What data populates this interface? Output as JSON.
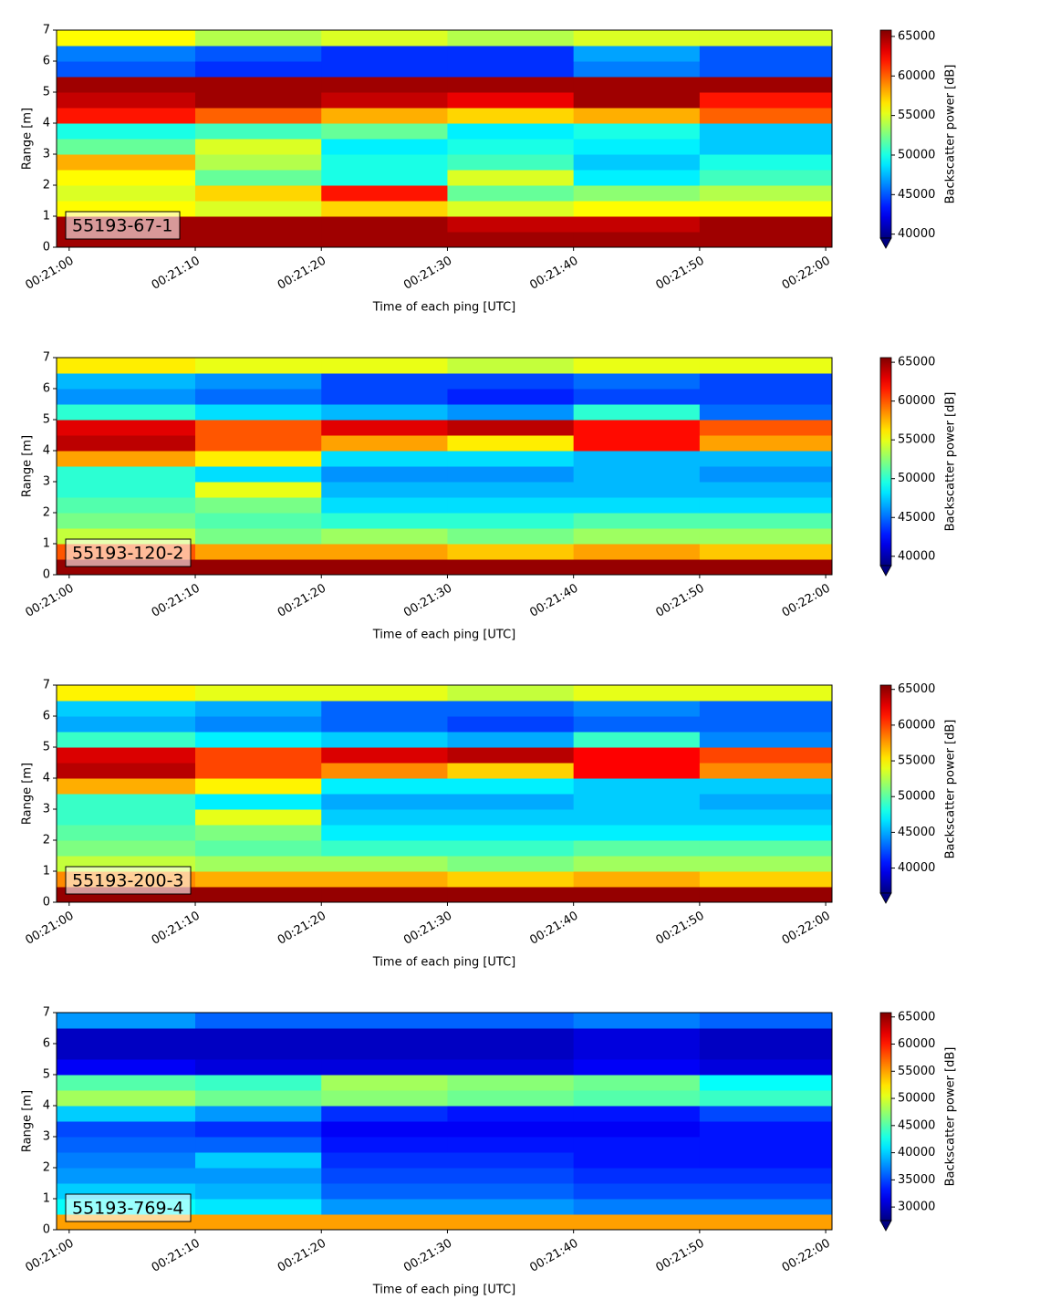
{
  "chart_data": [
    {
      "type": "heatmap",
      "label": "55193-67-1",
      "xlabel": "Time of each ping [UTC]",
      "ylabel": "Range [m]",
      "colorbar_label": "Backscatter power [dB]",
      "colormap": "jet",
      "colorbar_extend": "min",
      "x": [
        "00:20:59",
        "00:21:10",
        "00:21:20",
        "00:21:30",
        "00:21:40",
        "00:21:50",
        "00:22:00.5"
      ],
      "y": [
        0,
        0.5,
        1,
        1.5,
        2,
        2.5,
        3,
        3.5,
        4,
        4.5,
        5,
        5.5,
        6,
        6.5,
        7
      ],
      "values": [
        [
          65000,
          65000,
          65000,
          65000,
          65000,
          65000
        ],
        [
          65000,
          65000,
          65000,
          64000,
          64000,
          65000
        ],
        [
          56000,
          55000,
          57000,
          55000,
          56000,
          56000
        ],
        [
          55000,
          57000,
          62000,
          52000,
          53000,
          54000
        ],
        [
          56000,
          52000,
          50000,
          55000,
          49000,
          51000
        ],
        [
          58000,
          54000,
          50000,
          51000,
          48000,
          50000
        ],
        [
          52000,
          55000,
          49000,
          50000,
          49000,
          48000
        ],
        [
          50000,
          51000,
          52000,
          49000,
          50000,
          48000
        ],
        [
          62000,
          60000,
          58000,
          57000,
          58000,
          60000
        ],
        [
          64000,
          65000,
          64000,
          63000,
          65000,
          62000
        ],
        [
          65000,
          65000,
          65000,
          65000,
          65000,
          65000
        ],
        [
          45000,
          44000,
          44000,
          44000,
          46000,
          45000
        ],
        [
          46000,
          45000,
          44000,
          44000,
          47000,
          45000
        ],
        [
          56000,
          54000,
          55000,
          54000,
          55000,
          55000
        ]
      ],
      "xlim": [
        "00:20:59",
        "00:22:00.5"
      ],
      "xticks": [
        "00:21:00",
        "00:21:10",
        "00:21:20",
        "00:21:30",
        "00:21:40",
        "00:21:50",
        "00:22:00"
      ],
      "ylim": [
        0,
        7
      ],
      "yticks": [
        0,
        1,
        2,
        3,
        4,
        5,
        6,
        7
      ],
      "clim": [
        39500,
        65800
      ],
      "cticks": [
        40000,
        45000,
        50000,
        55000,
        60000,
        65000
      ]
    },
    {
      "type": "heatmap",
      "label": "55193-120-2",
      "xlabel": "Time of each ping [UTC]",
      "ylabel": "Range [m]",
      "colorbar_label": "Backscatter power [dB]",
      "colormap": "jet",
      "colorbar_extend": "min",
      "x": [
        "00:20:59",
        "00:21:10",
        "00:21:20",
        "00:21:30",
        "00:21:40",
        "00:21:50",
        "00:22:00.5"
      ],
      "y": [
        0,
        0.5,
        1,
        1.5,
        2,
        2.5,
        3,
        3.5,
        4,
        4.5,
        5,
        5.5,
        6,
        6.5,
        7
      ],
      "values": [
        [
          65000,
          65000,
          65000,
          65000,
          65000,
          65000
        ],
        [
          60000,
          58000,
          58000,
          57000,
          58000,
          57000
        ],
        [
          54000,
          52000,
          53000,
          52000,
          53000,
          53000
        ],
        [
          52000,
          51000,
          50000,
          50000,
          51000,
          51000
        ],
        [
          51000,
          52000,
          48000,
          48000,
          48000,
          48000
        ],
        [
          50000,
          55000,
          47000,
          47000,
          47000,
          47000
        ],
        [
          50000,
          48000,
          46000,
          46000,
          47000,
          46000
        ],
        [
          58000,
          56000,
          48000,
          48000,
          47000,
          47000
        ],
        [
          64000,
          60000,
          58000,
          56000,
          62000,
          58000
        ],
        [
          63000,
          60000,
          63000,
          64000,
          62000,
          60000
        ],
        [
          50000,
          48000,
          47000,
          46000,
          50000,
          45000
        ],
        [
          46000,
          45000,
          44000,
          43000,
          44000,
          44000
        ],
        [
          47000,
          46000,
          44000,
          44000,
          45000,
          44000
        ],
        [
          56000,
          55000,
          55000,
          54000,
          55000,
          55000
        ]
      ],
      "xlim": [
        "00:20:59",
        "00:22:00.5"
      ],
      "xticks": [
        "00:21:00",
        "00:21:10",
        "00:21:20",
        "00:21:30",
        "00:21:40",
        "00:21:50",
        "00:22:00"
      ],
      "ylim": [
        0,
        7
      ],
      "yticks": [
        0,
        1,
        2,
        3,
        4,
        5,
        6,
        7
      ],
      "clim": [
        38800,
        65600
      ],
      "cticks": [
        40000,
        45000,
        50000,
        55000,
        60000,
        65000
      ]
    },
    {
      "type": "heatmap",
      "label": "55193-200-3",
      "xlabel": "Time of each ping [UTC]",
      "ylabel": "Range [m]",
      "colorbar_label": "Backscatter power [dB]",
      "colormap": "jet",
      "colorbar_extend": "min",
      "x": [
        "00:20:59",
        "00:21:10",
        "00:21:20",
        "00:21:30",
        "00:21:40",
        "00:21:50",
        "00:22:00.5"
      ],
      "y": [
        0,
        0.5,
        1,
        1.5,
        2,
        2.5,
        3,
        3.5,
        4,
        4.5,
        5,
        5.5,
        6,
        6.5,
        7
      ],
      "values": [
        [
          65000,
          65000,
          65000,
          65000,
          65000,
          65000
        ],
        [
          58000,
          57000,
          57000,
          56000,
          57000,
          56000
        ],
        [
          53000,
          52000,
          52000,
          51000,
          52000,
          52000
        ],
        [
          51000,
          50000,
          49000,
          49000,
          50000,
          50000
        ],
        [
          50000,
          51000,
          47000,
          47000,
          47000,
          47000
        ],
        [
          49000,
          54000,
          46000,
          46000,
          46000,
          46000
        ],
        [
          49000,
          47000,
          45000,
          45000,
          46000,
          45000
        ],
        [
          57000,
          55000,
          47000,
          47000,
          46000,
          46000
        ],
        [
          64000,
          60000,
          58000,
          56000,
          62000,
          58000
        ],
        [
          63000,
          60000,
          63000,
          64000,
          62000,
          60000
        ],
        [
          49000,
          47000,
          46000,
          45000,
          49000,
          44000
        ],
        [
          45000,
          44000,
          43000,
          42000,
          43000,
          43000
        ],
        [
          46000,
          45000,
          43000,
          43000,
          44000,
          43000
        ],
        [
          55000,
          54000,
          54000,
          53000,
          54000,
          54000
        ]
      ],
      "xlim": [
        "00:20:59",
        "00:22:00.5"
      ],
      "xticks": [
        "00:21:00",
        "00:21:10",
        "00:21:20",
        "00:21:30",
        "00:21:40",
        "00:21:50",
        "00:22:00"
      ],
      "ylim": [
        0,
        7
      ],
      "yticks": [
        0,
        1,
        2,
        3,
        4,
        5,
        6,
        7
      ],
      "clim": [
        36500,
        65600
      ],
      "cticks": [
        40000,
        45000,
        50000,
        55000,
        60000,
        65000
      ]
    },
    {
      "type": "heatmap",
      "label": "55193-769-4",
      "xlabel": "Time of each ping [UTC]",
      "ylabel": "Range [m]",
      "colorbar_label": "Backscatter power [dB]",
      "colormap": "jet",
      "colorbar_extend": "min",
      "x": [
        "00:20:59",
        "00:21:10",
        "00:21:20",
        "00:21:30",
        "00:21:40",
        "00:21:50",
        "00:22:00.5"
      ],
      "y": [
        0,
        0.5,
        1,
        1.5,
        2,
        2.5,
        3,
        3.5,
        4,
        4.5,
        5,
        5.5,
        6,
        6.5,
        7
      ],
      "values": [
        [
          55000,
          55000,
          55000,
          55000,
          55000,
          55000
        ],
        [
          42000,
          41000,
          38000,
          38000,
          37000,
          37000
        ],
        [
          40000,
          39000,
          36000,
          36000,
          35000,
          35000
        ],
        [
          38000,
          38000,
          35000,
          35000,
          34000,
          34000
        ],
        [
          37000,
          40000,
          34000,
          34000,
          33000,
          33000
        ],
        [
          36000,
          36000,
          33000,
          33000,
          33000,
          33000
        ],
        [
          35000,
          34000,
          32000,
          32000,
          32000,
          33000
        ],
        [
          40000,
          38000,
          34000,
          33000,
          33000,
          35000
        ],
        [
          48000,
          46000,
          47000,
          46000,
          45000,
          44000
        ],
        [
          45000,
          44000,
          48000,
          47000,
          46000,
          42000
        ],
        [
          32000,
          31000,
          31000,
          31000,
          32000,
          31000
        ],
        [
          30000,
          30000,
          30000,
          30000,
          31000,
          30000
        ],
        [
          30000,
          30000,
          30000,
          30000,
          31000,
          30000
        ],
        [
          38000,
          36000,
          36000,
          36000,
          37000,
          36000
        ]
      ],
      "xlim": [
        "00:20:59",
        "00:22:00.5"
      ],
      "xticks": [
        "00:21:00",
        "00:21:10",
        "00:21:20",
        "00:21:30",
        "00:21:40",
        "00:21:50",
        "00:22:00"
      ],
      "ylim": [
        0,
        7
      ],
      "yticks": [
        0,
        1,
        2,
        3,
        4,
        5,
        6,
        7
      ],
      "clim": [
        27500,
        65800
      ],
      "cticks": [
        30000,
        35000,
        40000,
        45000,
        50000,
        55000,
        60000,
        65000
      ]
    }
  ]
}
